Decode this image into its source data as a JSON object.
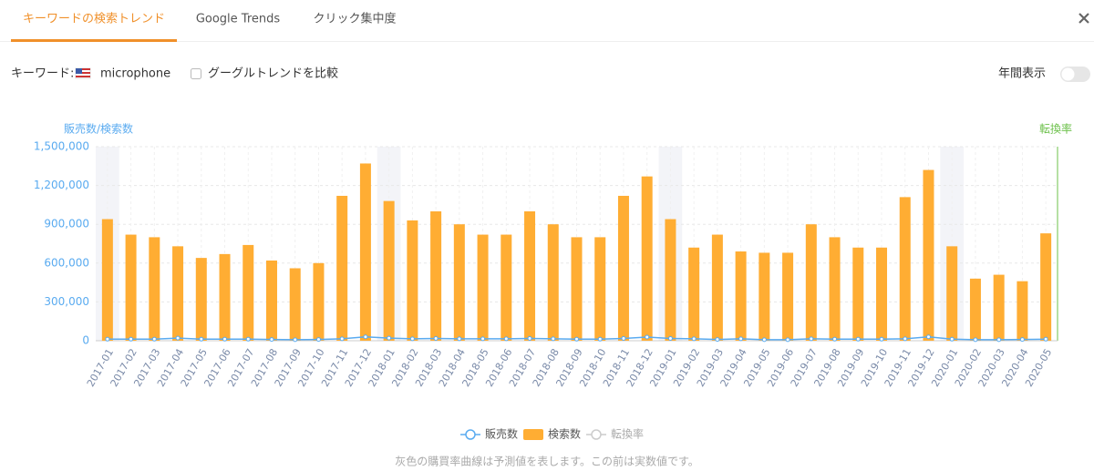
{
  "tabs": [
    "キーワードの検索トレンド",
    "Google Trends",
    "クリック集中度"
  ],
  "keyword_label": "キーワード:",
  "keyword": "microphone",
  "compare_label": "グーグルトレンドを比較",
  "annual_label": "年間表示",
  "footnote": "灰色の購買率曲線は予測値を表します。この前は実数値です。",
  "chart_data": {
    "type": "bar",
    "y_label": "販売数/検索数",
    "y2_label": "転換率",
    "categories": [
      "2017-01",
      "2017-02",
      "2017-03",
      "2017-04",
      "2017-05",
      "2017-06",
      "2017-07",
      "2017-08",
      "2017-09",
      "2017-10",
      "2017-11",
      "2017-12",
      "2018-01",
      "2018-02",
      "2018-03",
      "2018-04",
      "2018-05",
      "2018-06",
      "2018-07",
      "2018-08",
      "2018-09",
      "2018-10",
      "2018-11",
      "2018-12",
      "2019-01",
      "2019-02",
      "2019-03",
      "2019-04",
      "2019-05",
      "2019-06",
      "2019-07",
      "2019-08",
      "2019-09",
      "2019-10",
      "2019-11",
      "2019-12",
      "2020-01",
      "2020-02",
      "2020-03",
      "2020-04",
      "2020-05"
    ],
    "series": [
      {
        "name": "販売数",
        "type": "line",
        "color": "#5aabf0",
        "values": [
          12000,
          12000,
          12000,
          20000,
          12000,
          12000,
          12000,
          10000,
          8000,
          10000,
          15000,
          30000,
          20000,
          15000,
          18000,
          15000,
          15000,
          15000,
          18000,
          15000,
          12000,
          12000,
          18000,
          28000,
          18000,
          15000,
          10000,
          15000,
          8000,
          8000,
          15000,
          12000,
          12000,
          12000,
          15000,
          30000,
          12000,
          8000,
          8000,
          10000,
          12000
        ]
      },
      {
        "name": "検索数",
        "type": "bar",
        "color": "#ffad33",
        "values": [
          940000,
          820000,
          800000,
          730000,
          640000,
          670000,
          740000,
          620000,
          560000,
          600000,
          1120000,
          1370000,
          1080000,
          930000,
          1000000,
          900000,
          820000,
          820000,
          1000000,
          900000,
          800000,
          800000,
          1120000,
          1270000,
          940000,
          720000,
          820000,
          690000,
          680000,
          680000,
          900000,
          800000,
          720000,
          720000,
          1110000,
          1320000,
          730000,
          480000,
          510000,
          460000,
          830000
        ]
      },
      {
        "name": "転換率",
        "type": "line",
        "color": "#cccccc",
        "axis": "y2",
        "values": [
          null,
          null,
          null,
          null,
          null,
          null,
          null,
          null,
          null,
          null,
          null,
          null,
          null,
          null,
          null,
          null,
          null,
          null,
          null,
          null,
          null,
          null,
          null,
          null,
          null,
          null,
          null,
          null,
          null,
          null,
          null,
          null,
          null,
          null,
          null,
          null,
          null,
          null,
          null,
          null,
          null
        ]
      }
    ],
    "ylim": [
      0,
      1500000
    ],
    "yticks": [
      0,
      {
        "value": 300000,
        "label": "300,000"
      },
      {
        "value": 600000,
        "label": "600,000"
      },
      {
        "value": 900000,
        "label": "900,000"
      },
      {
        "value": 1200000,
        "label": "1,200,000"
      },
      {
        "value": 1500000,
        "label": "1,500,000"
      }
    ],
    "grid": true
  }
}
